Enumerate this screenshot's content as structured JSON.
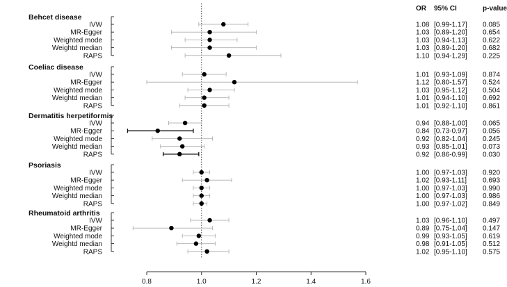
{
  "chart_data": {
    "type": "forest",
    "columns": {
      "or": "OR",
      "ci": "95% CI",
      "p": "p-value"
    },
    "xticks": [
      0.8,
      1.0,
      1.2,
      1.4,
      1.6
    ],
    "xlim": [
      0.8,
      1.6
    ],
    "reference_line": 1.0,
    "groups": [
      {
        "name": "Behcet disease",
        "rows": [
          {
            "method": "IVW",
            "or": 1.08,
            "lo": 0.99,
            "hi": 1.17,
            "or_text": "1.08",
            "ci_text": "[0.99-1.17]",
            "p_text": "0.085",
            "significant": false
          },
          {
            "method": "MR-Egger",
            "or": 1.03,
            "lo": 0.89,
            "hi": 1.2,
            "or_text": "1.03",
            "ci_text": "[0.89-1.20]",
            "p_text": "0.654",
            "significant": false
          },
          {
            "method": "Weighted mode",
            "or": 1.03,
            "lo": 0.94,
            "hi": 1.13,
            "or_text": "1.03",
            "ci_text": "[0.94-1.13]",
            "p_text": "0.622",
            "significant": false
          },
          {
            "method": "Weightd median",
            "or": 1.03,
            "lo": 0.89,
            "hi": 1.2,
            "or_text": "1.03",
            "ci_text": "[0.89-1.20]",
            "p_text": "0.682",
            "significant": false
          },
          {
            "method": "RAPS",
            "or": 1.1,
            "lo": 0.94,
            "hi": 1.29,
            "or_text": "1.10",
            "ci_text": "[0.94-1.29]",
            "p_text": "0.225",
            "significant": false
          }
        ]
      },
      {
        "name": "Coeliac disease",
        "rows": [
          {
            "method": "IVW",
            "or": 1.01,
            "lo": 0.93,
            "hi": 1.09,
            "or_text": "1.01",
            "ci_text": "[0.93-1.09]",
            "p_text": "0.874",
            "significant": false
          },
          {
            "method": "MR-Egger",
            "or": 1.12,
            "lo": 0.8,
            "hi": 1.57,
            "or_text": "1.12",
            "ci_text": "[0.80-1.57]",
            "p_text": "0.524",
            "significant": false
          },
          {
            "method": "Weighted mode",
            "or": 1.03,
            "lo": 0.95,
            "hi": 1.12,
            "or_text": "1.03",
            "ci_text": "[0.95-1.12]",
            "p_text": "0.504",
            "significant": false
          },
          {
            "method": "Weightd median",
            "or": 1.01,
            "lo": 0.94,
            "hi": 1.1,
            "or_text": "1.01",
            "ci_text": "[0.94-1.10]",
            "p_text": "0.692",
            "significant": false
          },
          {
            "method": "RAPS",
            "or": 1.01,
            "lo": 0.92,
            "hi": 1.1,
            "or_text": "1.01",
            "ci_text": "[0.92-1.10]",
            "p_text": "0.861",
            "significant": false
          }
        ]
      },
      {
        "name": "Dermatitis herpetiformis",
        "rows": [
          {
            "method": "IVW",
            "or": 0.94,
            "lo": 0.88,
            "hi": 1.0,
            "or_text": "0.94",
            "ci_text": "[0.88-1.00]",
            "p_text": "0.065",
            "significant": false
          },
          {
            "method": "MR-Egger",
            "or": 0.84,
            "lo": 0.73,
            "hi": 0.97,
            "or_text": "0.84",
            "ci_text": "[0.73-0.97]",
            "p_text": "0.056",
            "significant": true
          },
          {
            "method": "Weighted mode",
            "or": 0.92,
            "lo": 0.82,
            "hi": 1.04,
            "or_text": "0.92",
            "ci_text": "[0.82-1.04]",
            "p_text": "0.245",
            "significant": false
          },
          {
            "method": "Weightd median",
            "or": 0.93,
            "lo": 0.85,
            "hi": 1.01,
            "or_text": "0.93",
            "ci_text": "[0.85-1.01]",
            "p_text": "0.073",
            "significant": false
          },
          {
            "method": "RAPS",
            "or": 0.92,
            "lo": 0.86,
            "hi": 0.99,
            "or_text": "0.92",
            "ci_text": "[0.86-0.99]",
            "p_text": "0.030",
            "significant": true
          }
        ]
      },
      {
        "name": "Psoriasis",
        "rows": [
          {
            "method": "IVW",
            "or": 1.0,
            "lo": 0.97,
            "hi": 1.03,
            "or_text": "1.00",
            "ci_text": "[0.97-1.03]",
            "p_text": "0.920",
            "significant": false
          },
          {
            "method": "MR-Egger",
            "or": 1.02,
            "lo": 0.93,
            "hi": 1.11,
            "or_text": "1.02",
            "ci_text": "[0.93-1.11]",
            "p_text": "0.693",
            "significant": false
          },
          {
            "method": "Weighted mode",
            "or": 1.0,
            "lo": 0.97,
            "hi": 1.03,
            "or_text": "1.00",
            "ci_text": "[0.97-1.03]",
            "p_text": "0.990",
            "significant": false
          },
          {
            "method": "Weightd median",
            "or": 1.0,
            "lo": 0.97,
            "hi": 1.03,
            "or_text": "1.00",
            "ci_text": "[0.97-1.03]",
            "p_text": "0.986",
            "significant": false
          },
          {
            "method": "RAPS",
            "or": 1.0,
            "lo": 0.97,
            "hi": 1.02,
            "or_text": "1.00",
            "ci_text": "[0.97-1.02]",
            "p_text": "0.849",
            "significant": false
          }
        ]
      },
      {
        "name": "Rheumatoid arthritis",
        "rows": [
          {
            "method": "IVW",
            "or": 1.03,
            "lo": 0.96,
            "hi": 1.1,
            "or_text": "1.03",
            "ci_text": "[0.96-1.10]",
            "p_text": "0.497",
            "significant": false
          },
          {
            "method": "MR-Egger",
            "or": 0.89,
            "lo": 0.75,
            "hi": 1.04,
            "or_text": "0.89",
            "ci_text": "[0.75-1.04]",
            "p_text": "0.147",
            "significant": false
          },
          {
            "method": "Weighted mode",
            "or": 0.99,
            "lo": 0.93,
            "hi": 1.05,
            "or_text": "0.99",
            "ci_text": "[0.93-1.05]",
            "p_text": "0.619",
            "significant": false
          },
          {
            "method": "Weightd median",
            "or": 0.98,
            "lo": 0.91,
            "hi": 1.05,
            "or_text": "0.98",
            "ci_text": "[0.91-1.05]",
            "p_text": "0.512",
            "significant": false
          },
          {
            "method": "RAPS",
            "or": 1.02,
            "lo": 0.95,
            "hi": 1.1,
            "or_text": "1.02",
            "ci_text": "[0.95-1.10]",
            "p_text": "0.575",
            "significant": false
          }
        ]
      }
    ],
    "colors": {
      "ci_line": "#b8b8b8",
      "ci_line_significant": "#111111",
      "point": "#000000",
      "axis": "#333333",
      "ref_line": "#444444"
    }
  }
}
